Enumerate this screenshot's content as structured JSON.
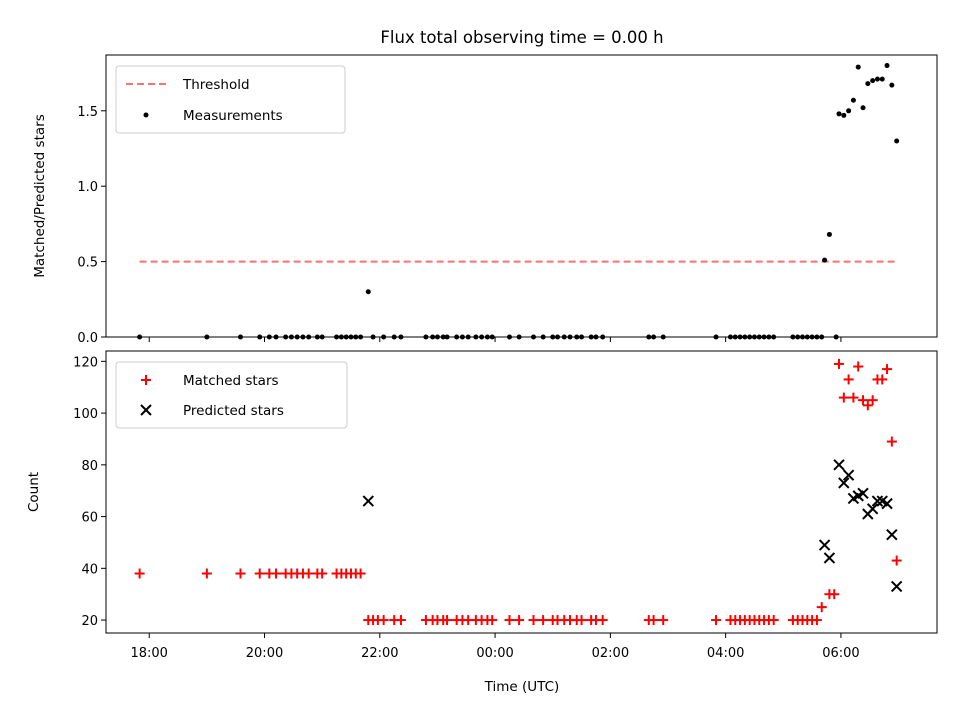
{
  "chart_data": [
    {
      "type": "scatter",
      "title": "Flux total observing time = 0.00 h",
      "xlabel": "",
      "ylabel": "Matched/Predicted stars",
      "xlim": [
        "17:15",
        "07:40"
      ],
      "ylim": [
        0,
        1.87
      ],
      "yticks": [
        "0.0",
        "0.5",
        "1.0",
        "1.5"
      ],
      "ytick_values": [
        0,
        0.5,
        1.0,
        1.5
      ],
      "grid": false,
      "legend_position": "top-left",
      "threshold": {
        "name": "Threshold",
        "value": 0.5,
        "x_range": [
          "17:50",
          "06:58"
        ],
        "color": "#ff7070",
        "style": "dashed"
      },
      "series": [
        {
          "name": "Measurements",
          "marker": "dot",
          "color": "#000000",
          "points": [
            [
              "17:50",
              0
            ],
            [
              "19:00",
              0
            ],
            [
              "19:35",
              0
            ],
            [
              "19:55",
              0
            ],
            [
              "20:05",
              0
            ],
            [
              "20:12",
              0
            ],
            [
              "20:22",
              0
            ],
            [
              "20:28",
              0
            ],
            [
              "20:34",
              0
            ],
            [
              "20:40",
              0
            ],
            [
              "20:46",
              0
            ],
            [
              "20:55",
              0
            ],
            [
              "21:00",
              0
            ],
            [
              "21:15",
              0
            ],
            [
              "21:20",
              0
            ],
            [
              "21:25",
              0
            ],
            [
              "21:30",
              0
            ],
            [
              "21:35",
              0
            ],
            [
              "21:40",
              0
            ],
            [
              "21:48",
              0.3
            ],
            [
              "21:53",
              0
            ],
            [
              "22:04",
              0
            ],
            [
              "22:15",
              0
            ],
            [
              "22:22",
              0
            ],
            [
              "22:48",
              0
            ],
            [
              "22:55",
              0
            ],
            [
              "23:00",
              0
            ],
            [
              "23:06",
              0
            ],
            [
              "23:10",
              0
            ],
            [
              "23:20",
              0
            ],
            [
              "23:26",
              0
            ],
            [
              "23:32",
              0
            ],
            [
              "23:40",
              0
            ],
            [
              "23:46",
              0
            ],
            [
              "23:52",
              0
            ],
            [
              "23:57",
              0
            ],
            [
              "00:15",
              0
            ],
            [
              "00:25",
              0
            ],
            [
              "00:40",
              0
            ],
            [
              "00:50",
              0
            ],
            [
              "01:00",
              0
            ],
            [
              "01:05",
              0
            ],
            [
              "01:12",
              0
            ],
            [
              "01:18",
              0
            ],
            [
              "01:25",
              0
            ],
            [
              "01:30",
              0
            ],
            [
              "01:40",
              0
            ],
            [
              "01:45",
              0
            ],
            [
              "01:52",
              0
            ],
            [
              "02:40",
              0
            ],
            [
              "02:45",
              0
            ],
            [
              "02:55",
              0
            ],
            [
              "03:50",
              0
            ],
            [
              "04:05",
              0
            ],
            [
              "04:10",
              0
            ],
            [
              "04:15",
              0
            ],
            [
              "04:20",
              0
            ],
            [
              "04:25",
              0
            ],
            [
              "04:30",
              0
            ],
            [
              "04:35",
              0
            ],
            [
              "04:40",
              0
            ],
            [
              "04:45",
              0
            ],
            [
              "04:50",
              0
            ],
            [
              "05:10",
              0
            ],
            [
              "05:15",
              0
            ],
            [
              "05:20",
              0
            ],
            [
              "05:25",
              0
            ],
            [
              "05:30",
              0
            ],
            [
              "05:35",
              0
            ],
            [
              "05:40",
              0
            ],
            [
              "05:55",
              0
            ],
            [
              "05:43",
              0.51
            ],
            [
              "05:48",
              0.68
            ],
            [
              "05:58",
              1.48
            ],
            [
              "06:03",
              1.47
            ],
            [
              "06:08",
              1.5
            ],
            [
              "06:13",
              1.57
            ],
            [
              "06:18",
              1.79
            ],
            [
              "06:23",
              1.52
            ],
            [
              "06:28",
              1.68
            ],
            [
              "06:33",
              1.7
            ],
            [
              "06:38",
              1.71
            ],
            [
              "06:43",
              1.71
            ],
            [
              "06:48",
              1.8
            ],
            [
              "06:53",
              1.67
            ],
            [
              "06:58",
              1.3
            ]
          ]
        }
      ]
    },
    {
      "type": "scatter",
      "title": "",
      "xlabel": "Time (UTC)",
      "ylabel": "Count",
      "xlim": [
        "17:15",
        "07:40"
      ],
      "ylim": [
        15,
        124
      ],
      "yticks": [
        "20",
        "40",
        "60",
        "80",
        "100",
        "120"
      ],
      "ytick_values": [
        20,
        40,
        60,
        80,
        100,
        120
      ],
      "xticks": [
        "18:00",
        "20:00",
        "22:00",
        "00:00",
        "02:00",
        "04:00",
        "06:00"
      ],
      "grid": false,
      "legend_position": "top-left",
      "series": [
        {
          "name": "Matched stars",
          "marker": "plus",
          "color": "#ff0000",
          "points": [
            [
              "17:50",
              38
            ],
            [
              "19:00",
              38
            ],
            [
              "19:35",
              38
            ],
            [
              "19:55",
              38
            ],
            [
              "20:05",
              38
            ],
            [
              "20:12",
              38
            ],
            [
              "20:22",
              38
            ],
            [
              "20:28",
              38
            ],
            [
              "20:34",
              38
            ],
            [
              "20:40",
              38
            ],
            [
              "20:46",
              38
            ],
            [
              "20:55",
              38
            ],
            [
              "21:00",
              38
            ],
            [
              "21:15",
              38
            ],
            [
              "21:20",
              38
            ],
            [
              "21:25",
              38
            ],
            [
              "21:30",
              38
            ],
            [
              "21:35",
              38
            ],
            [
              "21:40",
              38
            ],
            [
              "21:48",
              20
            ],
            [
              "21:53",
              20
            ],
            [
              "21:58",
              20
            ],
            [
              "22:04",
              20
            ],
            [
              "22:15",
              20
            ],
            [
              "22:22",
              20
            ],
            [
              "22:48",
              20
            ],
            [
              "22:55",
              20
            ],
            [
              "23:00",
              20
            ],
            [
              "23:06",
              20
            ],
            [
              "23:10",
              20
            ],
            [
              "23:20",
              20
            ],
            [
              "23:26",
              20
            ],
            [
              "23:32",
              20
            ],
            [
              "23:40",
              20
            ],
            [
              "23:46",
              20
            ],
            [
              "23:52",
              20
            ],
            [
              "23:57",
              20
            ],
            [
              "00:15",
              20
            ],
            [
              "00:25",
              20
            ],
            [
              "00:40",
              20
            ],
            [
              "00:50",
              20
            ],
            [
              "01:00",
              20
            ],
            [
              "01:05",
              20
            ],
            [
              "01:12",
              20
            ],
            [
              "01:18",
              20
            ],
            [
              "01:25",
              20
            ],
            [
              "01:30",
              20
            ],
            [
              "01:40",
              20
            ],
            [
              "01:45",
              20
            ],
            [
              "01:52",
              20
            ],
            [
              "02:40",
              20
            ],
            [
              "02:45",
              20
            ],
            [
              "02:55",
              20
            ],
            [
              "03:50",
              20
            ],
            [
              "04:05",
              20
            ],
            [
              "04:10",
              20
            ],
            [
              "04:15",
              20
            ],
            [
              "04:20",
              20
            ],
            [
              "04:25",
              20
            ],
            [
              "04:30",
              20
            ],
            [
              "04:35",
              20
            ],
            [
              "04:40",
              20
            ],
            [
              "04:45",
              20
            ],
            [
              "04:50",
              20
            ],
            [
              "05:10",
              20
            ],
            [
              "05:15",
              20
            ],
            [
              "05:20",
              20
            ],
            [
              "05:25",
              20
            ],
            [
              "05:30",
              20
            ],
            [
              "05:35",
              20
            ],
            [
              "05:40",
              25
            ],
            [
              "05:48",
              30
            ],
            [
              "05:53",
              30
            ],
            [
              "05:58",
              119
            ],
            [
              "06:03",
              106
            ],
            [
              "06:08",
              113
            ],
            [
              "06:13",
              106
            ],
            [
              "06:18",
              118
            ],
            [
              "06:23",
              105
            ],
            [
              "06:28",
              103
            ],
            [
              "06:33",
              105
            ],
            [
              "06:38",
              113
            ],
            [
              "06:43",
              113
            ],
            [
              "06:48",
              117
            ],
            [
              "06:53",
              89
            ],
            [
              "06:58",
              43
            ]
          ]
        },
        {
          "name": "Predicted stars",
          "marker": "x",
          "color": "#000000",
          "points": [
            [
              "21:48",
              66
            ],
            [
              "05:43",
              49
            ],
            [
              "05:48",
              44
            ],
            [
              "05:58",
              80
            ],
            [
              "06:03",
              73
            ],
            [
              "06:08",
              76
            ],
            [
              "06:13",
              67
            ],
            [
              "06:18",
              68
            ],
            [
              "06:23",
              69
            ],
            [
              "06:28",
              61
            ],
            [
              "06:33",
              63
            ],
            [
              "06:38",
              66
            ],
            [
              "06:43",
              66
            ],
            [
              "06:48",
              65
            ],
            [
              "06:53",
              53
            ],
            [
              "06:58",
              33
            ]
          ]
        }
      ]
    }
  ]
}
